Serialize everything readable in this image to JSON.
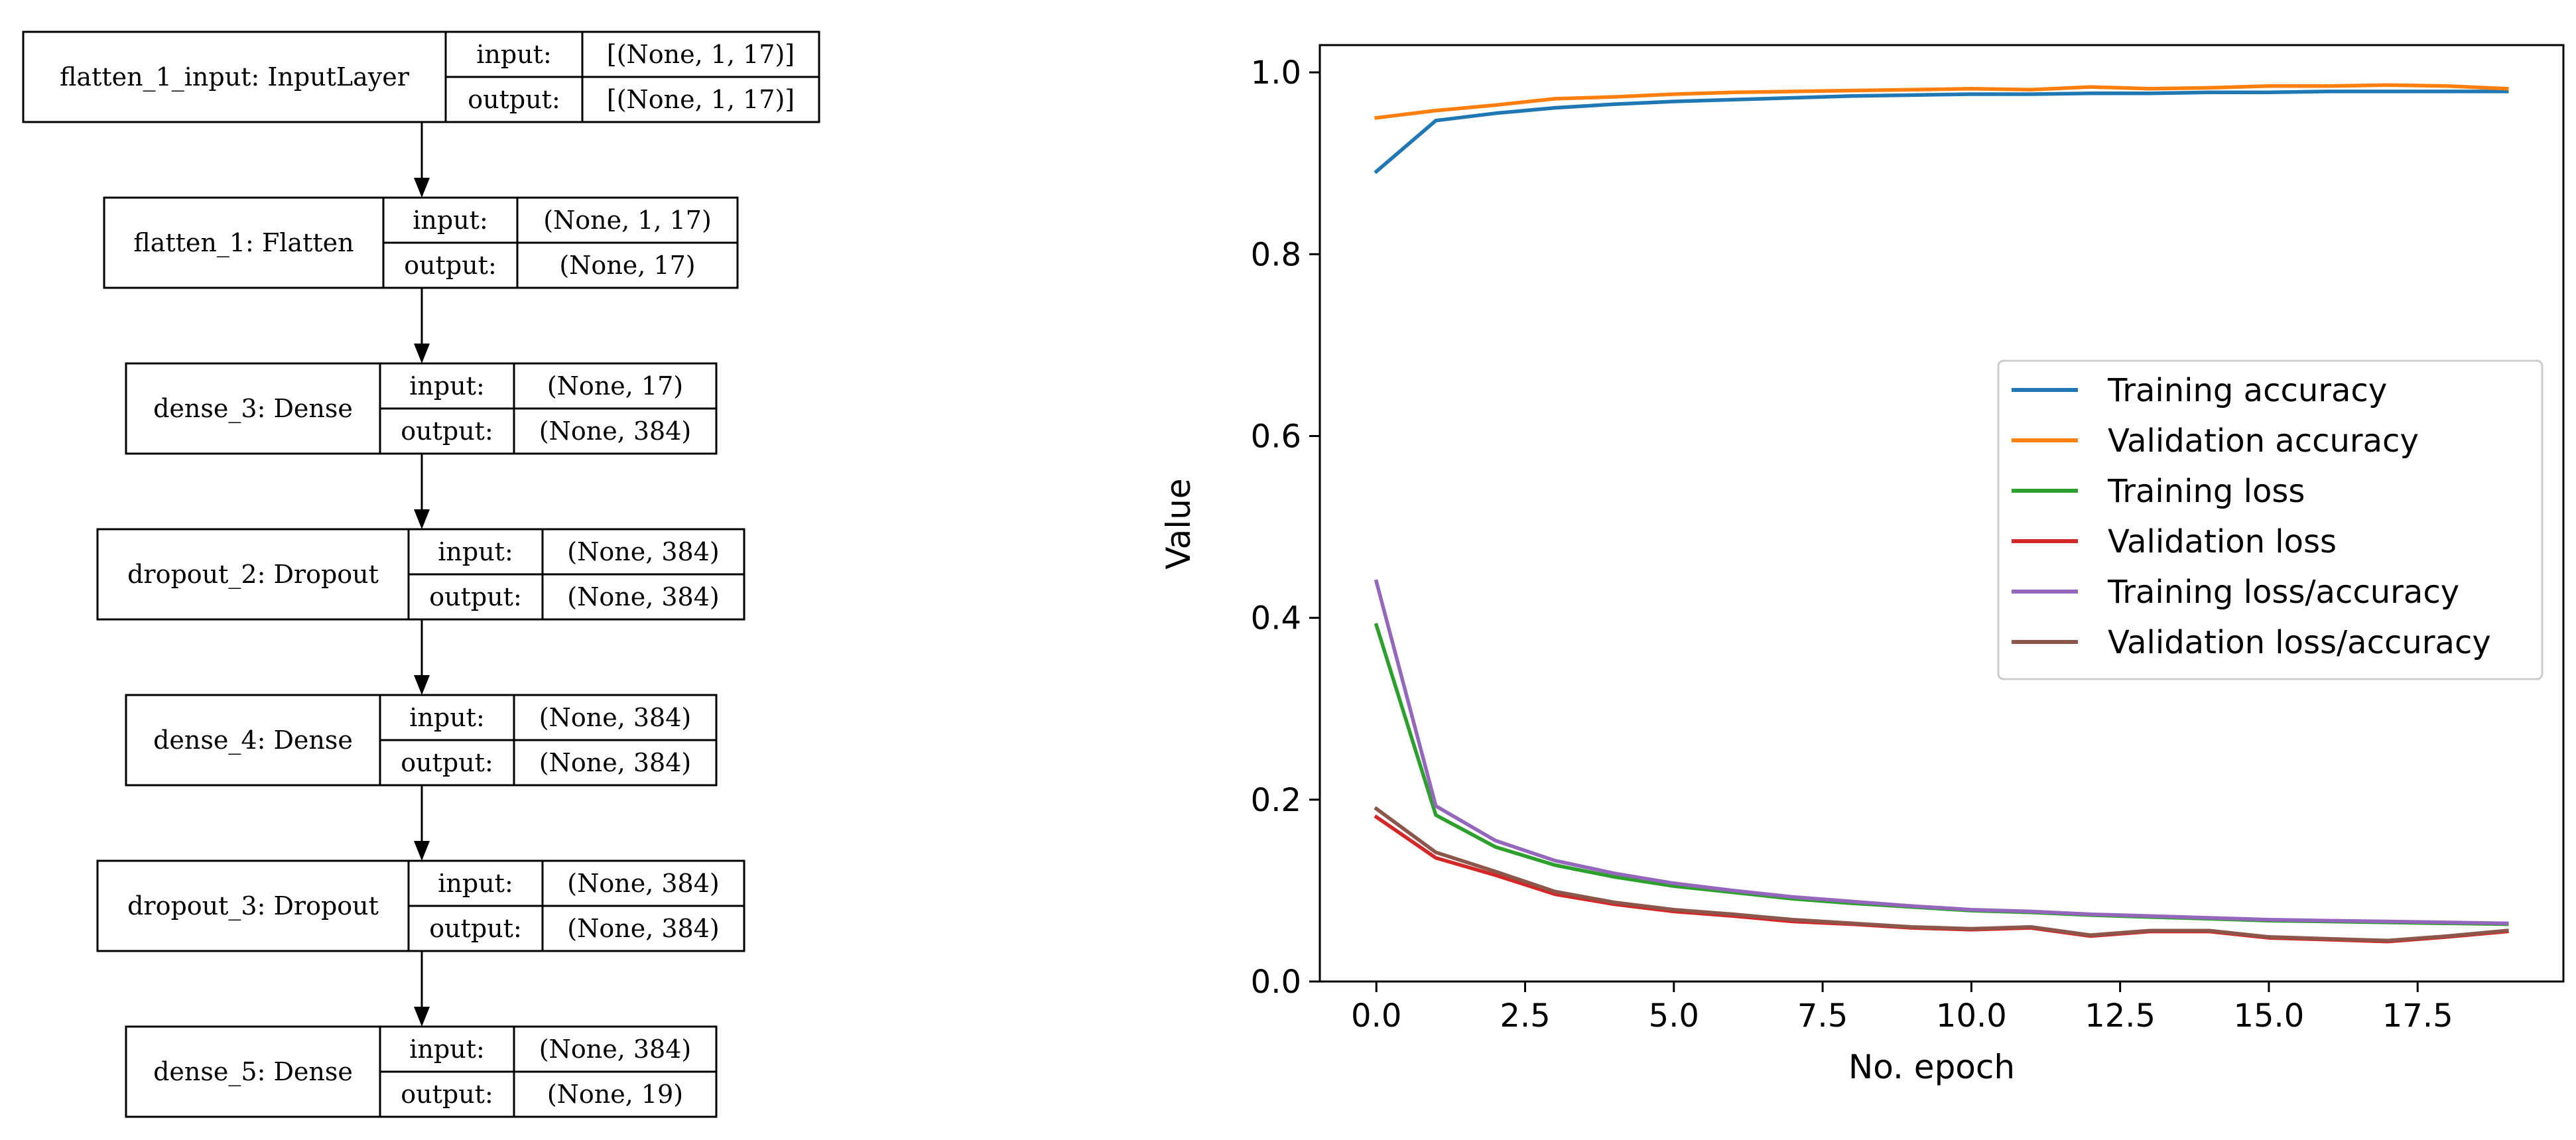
{
  "model_diagram": {
    "layers": [
      {
        "name": "flatten_1_input: InputLayer",
        "input_label": "input:",
        "output_label": "output:",
        "input_shape": "[(None, 1, 17)]",
        "output_shape": "[(None, 1, 17)]"
      },
      {
        "name": "flatten_1: Flatten",
        "input_label": "input:",
        "output_label": "output:",
        "input_shape": "(None, 1, 17)",
        "output_shape": "(None, 17)"
      },
      {
        "name": "dense_3: Dense",
        "input_label": "input:",
        "output_label": "output:",
        "input_shape": "(None, 17)",
        "output_shape": "(None, 384)"
      },
      {
        "name": "dropout_2: Dropout",
        "input_label": "input:",
        "output_label": "output:",
        "input_shape": "(None, 384)",
        "output_shape": "(None, 384)"
      },
      {
        "name": "dense_4: Dense",
        "input_label": "input:",
        "output_label": "output:",
        "input_shape": "(None, 384)",
        "output_shape": "(None, 384)"
      },
      {
        "name": "dropout_3: Dropout",
        "input_label": "input:",
        "output_label": "output:",
        "input_shape": "(None, 384)",
        "output_shape": "(None, 384)"
      },
      {
        "name": "dense_5: Dense",
        "input_label": "input:",
        "output_label": "output:",
        "input_shape": "(None, 384)",
        "output_shape": "(None, 19)"
      }
    ]
  },
  "chart_data": {
    "type": "line",
    "title": "",
    "xlabel": "No. epoch",
    "ylabel": "Value",
    "xlim": [
      -0.95,
      19.95
    ],
    "ylim": [
      0.0,
      1.03
    ],
    "xticks": [
      0.0,
      2.5,
      5.0,
      7.5,
      10.0,
      12.5,
      15.0,
      17.5
    ],
    "xtick_labels": [
      "0.0",
      "2.5",
      "5.0",
      "7.5",
      "10.0",
      "12.5",
      "15.0",
      "17.5"
    ],
    "yticks": [
      0.0,
      0.2,
      0.4,
      0.6,
      0.8,
      1.0
    ],
    "ytick_labels": [
      "0.0",
      "0.2",
      "0.4",
      "0.6",
      "0.8",
      "1.0"
    ],
    "grid": false,
    "legend_position": "center-right",
    "x": [
      0,
      1,
      2,
      3,
      4,
      5,
      6,
      7,
      8,
      9,
      10,
      11,
      12,
      13,
      14,
      15,
      16,
      17,
      18,
      19
    ],
    "series": [
      {
        "name": "Training accuracy",
        "color": "#1f77b4",
        "values": [
          0.891,
          0.947,
          0.955,
          0.961,
          0.965,
          0.968,
          0.97,
          0.972,
          0.974,
          0.975,
          0.976,
          0.976,
          0.977,
          0.977,
          0.978,
          0.978,
          0.979,
          0.979,
          0.979,
          0.979
        ]
      },
      {
        "name": "Validation accuracy",
        "color": "#ff7f0e",
        "values": [
          0.95,
          0.958,
          0.964,
          0.971,
          0.973,
          0.976,
          0.978,
          0.979,
          0.98,
          0.981,
          0.982,
          0.981,
          0.984,
          0.982,
          0.983,
          0.985,
          0.985,
          0.986,
          0.985,
          0.982
        ]
      },
      {
        "name": "Training loss",
        "color": "#2ca02c",
        "values": [
          0.392,
          0.183,
          0.148,
          0.128,
          0.115,
          0.105,
          0.098,
          0.091,
          0.086,
          0.082,
          0.078,
          0.076,
          0.073,
          0.071,
          0.069,
          0.067,
          0.066,
          0.065,
          0.064,
          0.063
        ]
      },
      {
        "name": "Validation loss",
        "color": "#d62728",
        "values": [
          0.181,
          0.136,
          0.117,
          0.096,
          0.085,
          0.077,
          0.072,
          0.066,
          0.063,
          0.059,
          0.057,
          0.059,
          0.05,
          0.055,
          0.055,
          0.048,
          0.046,
          0.044,
          0.049,
          0.055
        ]
      },
      {
        "name": "Training loss/accuracy",
        "color": "#9467bd",
        "values": [
          0.44,
          0.193,
          0.155,
          0.133,
          0.119,
          0.108,
          0.1,
          0.093,
          0.088,
          0.083,
          0.079,
          0.077,
          0.074,
          0.072,
          0.07,
          0.068,
          0.067,
          0.066,
          0.065,
          0.064
        ]
      },
      {
        "name": "Validation loss/accuracy",
        "color": "#8c564b",
        "values": [
          0.19,
          0.142,
          0.121,
          0.099,
          0.087,
          0.079,
          0.074,
          0.068,
          0.064,
          0.06,
          0.058,
          0.06,
          0.051,
          0.056,
          0.056,
          0.049,
          0.047,
          0.045,
          0.05,
          0.056
        ]
      }
    ]
  }
}
